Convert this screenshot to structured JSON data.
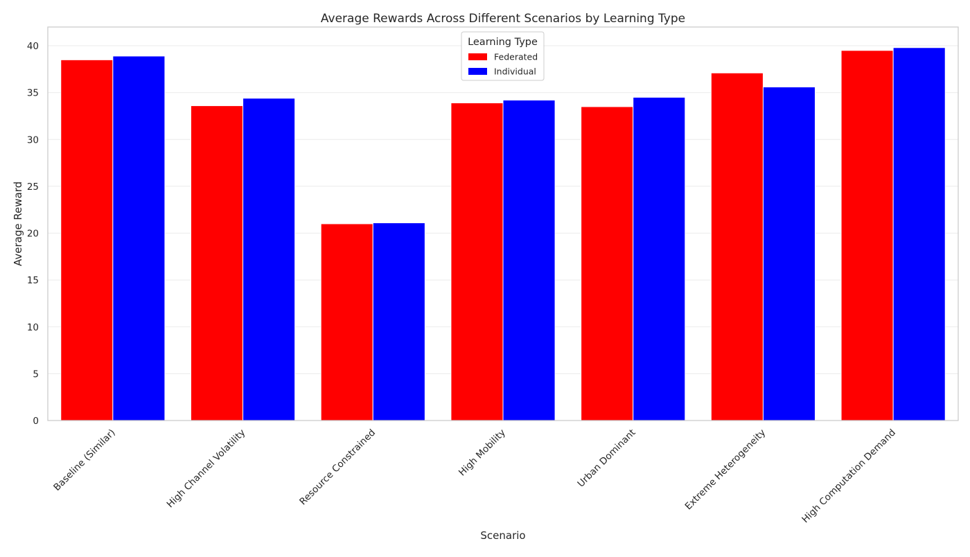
{
  "chart_data": {
    "type": "bar",
    "title": "Average Rewards Across Different Scenarios by Learning Type",
    "xlabel": "Scenario",
    "ylabel": "Average Reward",
    "ylim": [
      0,
      42
    ],
    "yticks": [
      0,
      5,
      10,
      15,
      20,
      25,
      30,
      35,
      40
    ],
    "grid": true,
    "categories": [
      "Baseline (Similar)",
      "High Channel Volatility",
      "Resource Constrained",
      "High Mobility",
      "Urban Dominant",
      "Extreme Heterogeneity",
      "High Computation Demand"
    ],
    "series": [
      {
        "name": "Federated",
        "color": "#ff0000",
        "values": [
          38.5,
          33.6,
          21.0,
          33.9,
          33.5,
          37.1,
          39.5
        ]
      },
      {
        "name": "Individual",
        "color": "#0000ff",
        "values": [
          38.9,
          34.4,
          21.1,
          34.2,
          34.5,
          35.6,
          39.8
        ]
      }
    ],
    "legend": {
      "title": "Learning Type",
      "position": "top-center"
    }
  }
}
